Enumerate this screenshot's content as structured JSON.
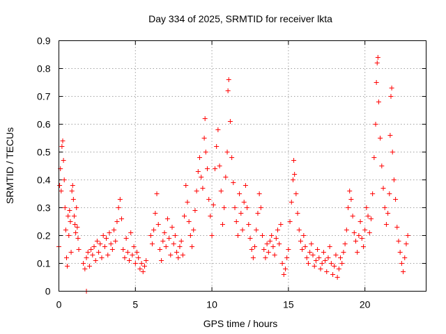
{
  "chart_data": {
    "type": "scatter",
    "title": "Day 334 of 2025, SRMTID for receiver lkta",
    "xlabel": "GPS time / hours",
    "ylabel": "SRMTID / TECUs",
    "xlim": [
      0,
      24
    ],
    "ylim": [
      0,
      0.9
    ],
    "xticks": [
      0,
      5,
      10,
      15,
      20
    ],
    "xtick_labels": [
      "0",
      "5",
      "10",
      "15",
      "20"
    ],
    "yticks": [
      0,
      0.1,
      0.2,
      0.3,
      0.4,
      0.5,
      0.6,
      0.7,
      0.8,
      0.9
    ],
    "ytick_labels": [
      "0",
      "0.1",
      "0.2",
      "0.3",
      "0.4",
      "0.5",
      "0.6",
      "0.7",
      "0.8",
      "0.9"
    ],
    "grid": true,
    "marker": "plus",
    "color": "#ff0000",
    "series": [
      {
        "name": "SRMTID",
        "points": [
          [
            0.0,
            0.16
          ],
          [
            0.05,
            0.38
          ],
          [
            0.1,
            0.44
          ],
          [
            0.15,
            0.36
          ],
          [
            0.2,
            0.52
          ],
          [
            0.25,
            0.54
          ],
          [
            0.3,
            0.47
          ],
          [
            0.35,
            0.4
          ],
          [
            0.4,
            0.3
          ],
          [
            0.45,
            0.22
          ],
          [
            0.5,
            0.12
          ],
          [
            0.55,
            0.09
          ],
          [
            0.6,
            0.27
          ],
          [
            0.65,
            0.2
          ],
          [
            0.7,
            0.29
          ],
          [
            0.75,
            0.25
          ],
          [
            0.8,
            0.14
          ],
          [
            0.85,
            0.36
          ],
          [
            0.9,
            0.38
          ],
          [
            0.95,
            0.33
          ],
          [
            1.0,
            0.27
          ],
          [
            1.05,
            0.24
          ],
          [
            1.1,
            0.21
          ],
          [
            1.15,
            0.3
          ],
          [
            1.2,
            0.23
          ],
          [
            1.25,
            0.19
          ],
          [
            1.3,
            0.15
          ],
          [
            1.8,
            0.0
          ],
          [
            1.6,
            0.1
          ],
          [
            1.7,
            0.08
          ],
          [
            1.8,
            0.12
          ],
          [
            1.9,
            0.14
          ],
          [
            2.0,
            0.09
          ],
          [
            2.1,
            0.15
          ],
          [
            2.2,
            0.13
          ],
          [
            2.3,
            0.16
          ],
          [
            2.4,
            0.11
          ],
          [
            2.5,
            0.18
          ],
          [
            2.6,
            0.14
          ],
          [
            2.7,
            0.17
          ],
          [
            2.8,
            0.12
          ],
          [
            2.9,
            0.2
          ],
          [
            3.0,
            0.16
          ],
          [
            3.1,
            0.19
          ],
          [
            3.2,
            0.13
          ],
          [
            3.3,
            0.21
          ],
          [
            3.4,
            0.17
          ],
          [
            3.5,
            0.15
          ],
          [
            3.6,
            0.22
          ],
          [
            3.7,
            0.18
          ],
          [
            3.8,
            0.25
          ],
          [
            3.9,
            0.3
          ],
          [
            4.0,
            0.33
          ],
          [
            4.1,
            0.26
          ],
          [
            4.2,
            0.15
          ],
          [
            4.3,
            0.12
          ],
          [
            4.4,
            0.19
          ],
          [
            4.5,
            0.14
          ],
          [
            4.6,
            0.11
          ],
          [
            4.7,
            0.21
          ],
          [
            4.8,
            0.13
          ],
          [
            4.9,
            0.16
          ],
          [
            5.0,
            0.1
          ],
          [
            5.1,
            0.14
          ],
          [
            5.2,
            0.12
          ],
          [
            5.3,
            0.08
          ],
          [
            5.4,
            0.1
          ],
          [
            5.5,
            0.07
          ],
          [
            5.6,
            0.09
          ],
          [
            5.7,
            0.11
          ],
          [
            6.0,
            0.2
          ],
          [
            6.1,
            0.17
          ],
          [
            6.2,
            0.22
          ],
          [
            6.3,
            0.28
          ],
          [
            6.4,
            0.35
          ],
          [
            6.5,
            0.24
          ],
          [
            6.6,
            0.15
          ],
          [
            6.7,
            0.11
          ],
          [
            6.8,
            0.18
          ],
          [
            6.9,
            0.21
          ],
          [
            7.0,
            0.16
          ],
          [
            7.1,
            0.26
          ],
          [
            7.2,
            0.19
          ],
          [
            7.3,
            0.13
          ],
          [
            7.4,
            0.23
          ],
          [
            7.5,
            0.17
          ],
          [
            7.6,
            0.2
          ],
          [
            7.7,
            0.14
          ],
          [
            7.8,
            0.12
          ],
          [
            7.9,
            0.16
          ],
          [
            8.0,
            0.18
          ],
          [
            8.1,
            0.13
          ],
          [
            8.2,
            0.27
          ],
          [
            8.3,
            0.38
          ],
          [
            8.4,
            0.32
          ],
          [
            8.5,
            0.25
          ],
          [
            8.6,
            0.2
          ],
          [
            8.7,
            0.16
          ],
          [
            8.8,
            0.22
          ],
          [
            8.9,
            0.29
          ],
          [
            9.0,
            0.36
          ],
          [
            9.1,
            0.43
          ],
          [
            9.2,
            0.48
          ],
          [
            9.3,
            0.41
          ],
          [
            9.4,
            0.37
          ],
          [
            9.5,
            0.55
          ],
          [
            9.55,
            0.62
          ],
          [
            9.6,
            0.5
          ],
          [
            9.7,
            0.44
          ],
          [
            9.8,
            0.33
          ],
          [
            9.9,
            0.27
          ],
          [
            10.0,
            0.2
          ],
          [
            10.1,
            0.31
          ],
          [
            10.2,
            0.44
          ],
          [
            10.3,
            0.52
          ],
          [
            10.4,
            0.58
          ],
          [
            10.5,
            0.45
          ],
          [
            10.6,
            0.36
          ],
          [
            10.7,
            0.24
          ],
          [
            10.8,
            0.3
          ],
          [
            10.9,
            0.41
          ],
          [
            11.0,
            0.5
          ],
          [
            11.05,
            0.72
          ],
          [
            11.1,
            0.76
          ],
          [
            11.2,
            0.61
          ],
          [
            11.3,
            0.48
          ],
          [
            11.4,
            0.39
          ],
          [
            11.5,
            0.3
          ],
          [
            11.6,
            0.25
          ],
          [
            11.7,
            0.2
          ],
          [
            11.8,
            0.35
          ],
          [
            11.9,
            0.28
          ],
          [
            12.0,
            0.22
          ],
          [
            12.1,
            0.32
          ],
          [
            12.2,
            0.38
          ],
          [
            12.3,
            0.3
          ],
          [
            12.4,
            0.24
          ],
          [
            12.5,
            0.19
          ],
          [
            12.6,
            0.15
          ],
          [
            12.7,
            0.12
          ],
          [
            12.8,
            0.16
          ],
          [
            12.9,
            0.22
          ],
          [
            13.0,
            0.28
          ],
          [
            13.1,
            0.35
          ],
          [
            13.2,
            0.3
          ],
          [
            13.3,
            0.2
          ],
          [
            13.4,
            0.15
          ],
          [
            13.5,
            0.12
          ],
          [
            13.6,
            0.17
          ],
          [
            13.7,
            0.14
          ],
          [
            13.8,
            0.18
          ],
          [
            13.9,
            0.2
          ],
          [
            14.0,
            0.16
          ],
          [
            14.1,
            0.13
          ],
          [
            14.2,
            0.19
          ],
          [
            14.3,
            0.22
          ],
          [
            14.4,
            0.17
          ],
          [
            14.5,
            0.24
          ],
          [
            14.6,
            0.1
          ],
          [
            14.7,
            0.06
          ],
          [
            14.8,
            0.08
          ],
          [
            14.9,
            0.12
          ],
          [
            15.0,
            0.15
          ],
          [
            15.1,
            0.25
          ],
          [
            15.2,
            0.32
          ],
          [
            15.3,
            0.4
          ],
          [
            15.35,
            0.47
          ],
          [
            15.4,
            0.42
          ],
          [
            15.5,
            0.35
          ],
          [
            15.6,
            0.28
          ],
          [
            15.7,
            0.22
          ],
          [
            15.8,
            0.18
          ],
          [
            15.9,
            0.15
          ],
          [
            16.0,
            0.2
          ],
          [
            16.1,
            0.16
          ],
          [
            16.2,
            0.12
          ],
          [
            16.3,
            0.1
          ],
          [
            16.4,
            0.14
          ],
          [
            16.5,
            0.17
          ],
          [
            16.6,
            0.13
          ],
          [
            16.7,
            0.09
          ],
          [
            16.8,
            0.11
          ],
          [
            16.9,
            0.15
          ],
          [
            17.0,
            0.12
          ],
          [
            17.1,
            0.08
          ],
          [
            17.2,
            0.1
          ],
          [
            17.3,
            0.14
          ],
          [
            17.4,
            0.11
          ],
          [
            17.5,
            0.07
          ],
          [
            17.6,
            0.12
          ],
          [
            17.7,
            0.16
          ],
          [
            17.8,
            0.1
          ],
          [
            17.9,
            0.06
          ],
          [
            18.0,
            0.09
          ],
          [
            18.1,
            0.13
          ],
          [
            18.2,
            0.05
          ],
          [
            18.3,
            0.08
          ],
          [
            18.4,
            0.12
          ],
          [
            18.5,
            0.1
          ],
          [
            18.6,
            0.14
          ],
          [
            18.7,
            0.17
          ],
          [
            18.8,
            0.22
          ],
          [
            18.9,
            0.3
          ],
          [
            19.0,
            0.36
          ],
          [
            19.1,
            0.33
          ],
          [
            19.2,
            0.27
          ],
          [
            19.3,
            0.21
          ],
          [
            19.4,
            0.18
          ],
          [
            19.5,
            0.14
          ],
          [
            19.6,
            0.2
          ],
          [
            19.7,
            0.25
          ],
          [
            19.8,
            0.19
          ],
          [
            19.9,
            0.16
          ],
          [
            20.0,
            0.22
          ],
          [
            20.1,
            0.3
          ],
          [
            20.2,
            0.27
          ],
          [
            20.3,
            0.21
          ],
          [
            20.4,
            0.26
          ],
          [
            20.5,
            0.35
          ],
          [
            20.6,
            0.48
          ],
          [
            20.7,
            0.6
          ],
          [
            20.75,
            0.75
          ],
          [
            20.8,
            0.82
          ],
          [
            20.85,
            0.84
          ],
          [
            20.9,
            0.68
          ],
          [
            21.0,
            0.55
          ],
          [
            21.1,
            0.45
          ],
          [
            21.2,
            0.37
          ],
          [
            21.3,
            0.3
          ],
          [
            21.4,
            0.24
          ],
          [
            21.5,
            0.28
          ],
          [
            21.6,
            0.35
          ],
          [
            21.65,
            0.56
          ],
          [
            21.7,
            0.7
          ],
          [
            21.75,
            0.73
          ],
          [
            21.8,
            0.5
          ],
          [
            21.9,
            0.4
          ],
          [
            22.0,
            0.33
          ],
          [
            22.1,
            0.23
          ],
          [
            22.2,
            0.18
          ],
          [
            22.3,
            0.14
          ],
          [
            22.4,
            0.1
          ],
          [
            22.5,
            0.07
          ],
          [
            22.6,
            0.12
          ],
          [
            22.7,
            0.17
          ],
          [
            22.8,
            0.2
          ]
        ]
      }
    ]
  }
}
